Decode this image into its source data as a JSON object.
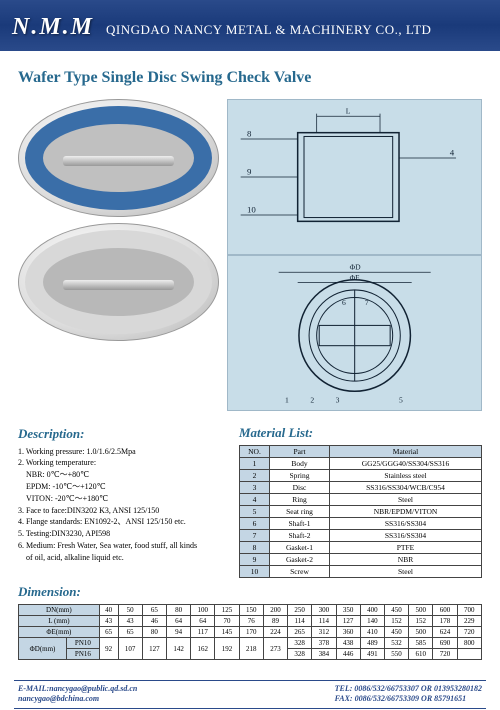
{
  "header": {
    "brand": "N.M.M",
    "company": "QINGDAO NANCY METAL & MACHINERY CO., LTD"
  },
  "title": "Wafer Type Single Disc Swing Check Valve",
  "sections": {
    "description": "Description:",
    "material": "Material List:",
    "dimension": "Dimension:"
  },
  "description": [
    "1. Working pressure: 1.0/1.6/2.5Mpa",
    "2. Working temperature:",
    "    NBR: 0℃～+80℃",
    "    EPDM: -10℃～+120℃",
    "    VITON: -20℃～+180℃",
    "3. Face to face:DIN3202 K3, ANSI 125/150",
    "4. Flange standards: EN1092-2、ANSI 125/150 etc.",
    "5. Testing:DIN3230, API598",
    "6. Medium: Fresh Water, Sea water, food stuff, all kinds",
    "    of oil, acid, alkaline liquid etc."
  ],
  "material": {
    "headers": [
      "NO.",
      "Part",
      "Material"
    ],
    "rows": [
      [
        "1",
        "Body",
        "GG25/GGG40/SS304/SS316"
      ],
      [
        "2",
        "Spring",
        "Stainless steel"
      ],
      [
        "3",
        "Disc",
        "SS316/SS304/WCB/C954"
      ],
      [
        "4",
        "Ring",
        "Steel"
      ],
      [
        "5",
        "Seat ring",
        "NBR/EPDM/VITON"
      ],
      [
        "6",
        "Shaft-1",
        "SS316/SS304"
      ],
      [
        "7",
        "Shaft-2",
        "SS316/SS304"
      ],
      [
        "8",
        "Gasket-1",
        "PTFE"
      ],
      [
        "9",
        "Gasket-2",
        "NBR"
      ],
      [
        "10",
        "Screw",
        "Steel"
      ]
    ]
  },
  "dimension": {
    "dn": [
      "40",
      "50",
      "65",
      "80",
      "100",
      "125",
      "150",
      "200",
      "250",
      "300",
      "350",
      "400",
      "450",
      "500",
      "600",
      "700"
    ],
    "l": [
      "43",
      "43",
      "46",
      "64",
      "64",
      "70",
      "76",
      "89",
      "114",
      "114",
      "127",
      "140",
      "152",
      "152",
      "178",
      "229"
    ],
    "phie": [
      "65",
      "65",
      "80",
      "94",
      "117",
      "145",
      "170",
      "224",
      "265",
      "312",
      "360",
      "410",
      "450",
      "500",
      "624",
      "720"
    ],
    "phid_pn10": [
      "92",
      "107",
      "127",
      "142",
      "162",
      "192",
      "218",
      "273",
      "328",
      "378",
      "438",
      "489",
      "532",
      "585",
      "690",
      "800"
    ],
    "phid_pn16": [
      "92",
      "107",
      "127",
      "142",
      "162",
      "192",
      "218",
      "273",
      "328",
      "384",
      "446",
      "491",
      "550",
      "610",
      "720",
      ""
    ]
  },
  "footer": {
    "email1": "E-MAIL:nancygao@public.qd.sd.cn",
    "email2": "nancygao@bdchina.com",
    "tel": "TEL: 0086/532/66753307 OR 013953280182",
    "fax": "FAX: 0086/532/66753309 OR 85791651"
  },
  "colors": {
    "headerbg": "#2a4a8a",
    "accent": "#27698e",
    "tablehd": "#c4d6e4",
    "diagbg": "#c8dde8"
  }
}
